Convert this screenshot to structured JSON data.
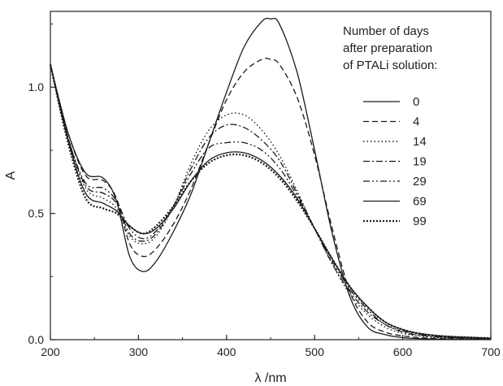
{
  "chart_data": {
    "type": "line",
    "title": "",
    "xlabel": "λ /nm",
    "ylabel": "A",
    "xlim": [
      200,
      700
    ],
    "ylim": [
      0,
      1.3
    ],
    "xticks": [
      200,
      300,
      400,
      500,
      600,
      700
    ],
    "yticks": [
      {
        "value": 0.0,
        "label": "0.0"
      },
      {
        "value": 0.5,
        "label": "0.5"
      },
      {
        "value": 1.0,
        "label": "1.0"
      }
    ],
    "grid": false,
    "legend": {
      "position": "top-right",
      "title_lines": [
        "Number of days",
        "after preparation",
        "of PTALi solution:"
      ]
    },
    "series": [
      {
        "name": "0",
        "style": "solid",
        "x": [
          200,
          220,
          240,
          260,
          275,
          290,
          305,
          320,
          340,
          360,
          380,
          400,
          420,
          440,
          450,
          460,
          480,
          500,
          520,
          540,
          560,
          580,
          600,
          620,
          650,
          700
        ],
        "y": [
          1.09,
          0.82,
          0.66,
          0.64,
          0.55,
          0.33,
          0.27,
          0.31,
          0.43,
          0.58,
          0.78,
          0.98,
          1.16,
          1.26,
          1.27,
          1.25,
          1.06,
          0.75,
          0.42,
          0.17,
          0.05,
          0.02,
          0.008,
          0.004,
          0.002,
          0.001
        ]
      },
      {
        "name": "4",
        "style": "dash",
        "x": [
          200,
          220,
          240,
          260,
          275,
          290,
          305,
          320,
          340,
          360,
          380,
          400,
          420,
          440,
          450,
          460,
          480,
          500,
          520,
          540,
          560,
          580,
          600,
          620,
          650,
          700
        ],
        "y": [
          1.09,
          0.82,
          0.65,
          0.63,
          0.56,
          0.38,
          0.33,
          0.36,
          0.46,
          0.6,
          0.78,
          0.95,
          1.06,
          1.11,
          1.11,
          1.09,
          0.96,
          0.73,
          0.44,
          0.19,
          0.07,
          0.03,
          0.015,
          0.008,
          0.004,
          0.002
        ]
      },
      {
        "name": "14",
        "style": "dot",
        "x": [
          200,
          220,
          240,
          260,
          275,
          290,
          305,
          320,
          340,
          360,
          380,
          400,
          420,
          440,
          460,
          480,
          500,
          520,
          540,
          560,
          580,
          600,
          620,
          650,
          700
        ],
        "y": [
          1.09,
          0.8,
          0.6,
          0.56,
          0.52,
          0.41,
          0.38,
          0.41,
          0.53,
          0.7,
          0.83,
          0.89,
          0.89,
          0.83,
          0.73,
          0.59,
          0.44,
          0.3,
          0.18,
          0.1,
          0.05,
          0.025,
          0.014,
          0.007,
          0.003
        ]
      },
      {
        "name": "19",
        "style": "dashdot",
        "x": [
          200,
          220,
          240,
          260,
          275,
          290,
          305,
          320,
          340,
          360,
          380,
          400,
          420,
          440,
          460,
          480,
          500,
          520,
          540,
          560,
          580,
          600,
          620,
          650,
          700
        ],
        "y": [
          1.09,
          0.8,
          0.61,
          0.58,
          0.54,
          0.42,
          0.39,
          0.42,
          0.53,
          0.68,
          0.8,
          0.85,
          0.84,
          0.79,
          0.71,
          0.58,
          0.44,
          0.3,
          0.19,
          0.11,
          0.06,
          0.03,
          0.017,
          0.009,
          0.004
        ]
      },
      {
        "name": "29",
        "style": "dashdotdot",
        "x": [
          200,
          220,
          240,
          260,
          275,
          290,
          305,
          320,
          340,
          360,
          380,
          400,
          420,
          440,
          460,
          480,
          500,
          520,
          540,
          560,
          580,
          600,
          620,
          650,
          700
        ],
        "y": [
          1.09,
          0.8,
          0.62,
          0.6,
          0.55,
          0.44,
          0.4,
          0.43,
          0.53,
          0.66,
          0.76,
          0.78,
          0.78,
          0.75,
          0.68,
          0.57,
          0.44,
          0.31,
          0.2,
          0.12,
          0.06,
          0.035,
          0.02,
          0.01,
          0.005
        ]
      },
      {
        "name": "69",
        "style": "solid",
        "x": [
          200,
          220,
          240,
          260,
          275,
          290,
          305,
          320,
          340,
          360,
          380,
          400,
          420,
          440,
          460,
          480,
          500,
          520,
          540,
          560,
          580,
          600,
          620,
          650,
          700
        ],
        "y": [
          1.09,
          0.79,
          0.58,
          0.54,
          0.51,
          0.45,
          0.42,
          0.44,
          0.52,
          0.63,
          0.71,
          0.74,
          0.74,
          0.71,
          0.65,
          0.56,
          0.44,
          0.32,
          0.21,
          0.13,
          0.07,
          0.04,
          0.024,
          0.013,
          0.006
        ]
      },
      {
        "name": "99",
        "style": "bolddot",
        "x": [
          200,
          220,
          240,
          260,
          275,
          290,
          305,
          320,
          340,
          360,
          380,
          400,
          420,
          440,
          460,
          480,
          500,
          520,
          540,
          560,
          580,
          600,
          620,
          650,
          700
        ],
        "y": [
          1.09,
          0.78,
          0.56,
          0.52,
          0.5,
          0.45,
          0.42,
          0.45,
          0.53,
          0.63,
          0.7,
          0.73,
          0.73,
          0.7,
          0.64,
          0.55,
          0.44,
          0.32,
          0.21,
          0.13,
          0.07,
          0.04,
          0.024,
          0.013,
          0.006
        ]
      }
    ]
  }
}
